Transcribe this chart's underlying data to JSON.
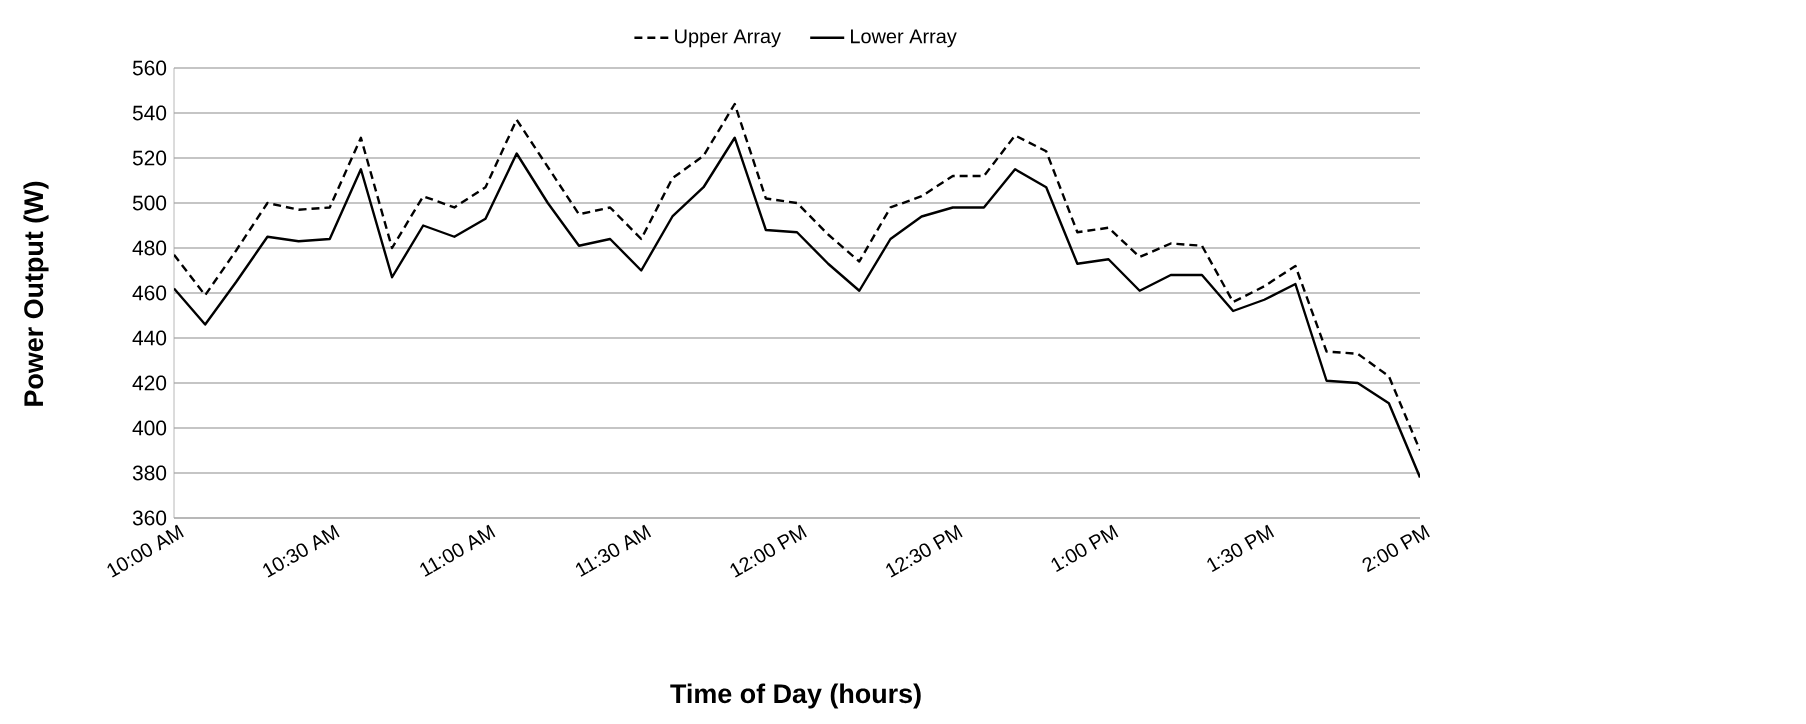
{
  "chart_data": {
    "type": "line",
    "xlabel": "Time of Day (hours)",
    "ylabel": "Power Output (W)",
    "x": [
      10.0,
      10.1,
      10.2,
      10.3,
      10.4,
      10.5,
      10.6,
      10.7,
      10.8,
      10.9,
      11.0,
      11.1,
      11.2,
      11.3,
      11.4,
      11.5,
      11.6,
      11.7,
      11.8,
      11.9,
      12.0,
      12.1,
      12.2,
      12.3,
      12.4,
      12.5,
      12.6,
      12.7,
      12.8,
      12.9,
      13.0,
      13.1,
      13.2,
      13.3,
      13.4,
      13.5,
      13.6,
      13.7,
      13.8,
      13.9,
      14.0
    ],
    "series": [
      {
        "name": "Upper Array",
        "color": "#000000",
        "line_style": "dashed",
        "values": [
          477,
          459,
          479,
          500,
          497,
          498,
          529,
          480,
          503,
          498,
          507,
          537,
          516,
          495,
          498,
          484,
          511,
          521,
          544,
          502,
          500,
          486,
          474,
          498,
          503,
          512,
          512,
          530,
          523,
          487,
          489,
          476,
          482,
          481,
          456,
          463,
          472,
          434,
          433,
          423,
          390
        ]
      },
      {
        "name": "Lower Array",
        "color": "#000000",
        "line_style": "solid",
        "values": [
          462,
          446,
          465,
          485,
          483,
          484,
          515,
          467,
          490,
          485,
          493,
          522,
          500,
          481,
          484,
          470,
          494,
          507,
          529,
          488,
          487,
          473,
          461,
          484,
          494,
          498,
          498,
          515,
          507,
          473,
          475,
          461,
          468,
          468,
          452,
          457,
          464,
          421,
          420,
          411,
          378
        ]
      }
    ],
    "xlim": [
      10,
      14
    ],
    "xticks": [
      {
        "value": 10,
        "label": "10:00 AM"
      },
      {
        "value": 10.5,
        "label": "10:30 AM"
      },
      {
        "value": 11,
        "label": "11:00 AM"
      },
      {
        "value": 11.5,
        "label": "11:30 AM"
      },
      {
        "value": 12,
        "label": "12:00 PM"
      },
      {
        "value": 12.5,
        "label": "12:30 PM"
      },
      {
        "value": 13,
        "label": "1:00 PM"
      },
      {
        "value": 13.5,
        "label": "1:30 PM"
      },
      {
        "value": 14,
        "label": "2:00 PM"
      }
    ],
    "ylim": [
      360,
      560
    ],
    "yticks": [
      360,
      380,
      400,
      420,
      440,
      460,
      480,
      500,
      520,
      540,
      560
    ],
    "grid": "y",
    "legend": "top"
  }
}
